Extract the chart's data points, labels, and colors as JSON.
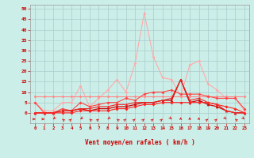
{
  "title": "",
  "xlabel": "Vent moyen/en rafales ( km/h )",
  "background_color": "#cceee8",
  "grid_color": "#aacccc",
  "x_labels": [
    "0",
    "1",
    "2",
    "3",
    "4",
    "5",
    "6",
    "7",
    "8",
    "9",
    "10",
    "11",
    "12",
    "13",
    "14",
    "15",
    "16",
    "17",
    "18",
    "19",
    "20",
    "21",
    "22",
    "23"
  ],
  "ylim": [
    -5,
    52
  ],
  "yticks": [
    0,
    5,
    10,
    15,
    20,
    25,
    30,
    35,
    40,
    45,
    50
  ],
  "series": [
    {
      "color": "#ffaaaa",
      "alpha": 1.0,
      "linewidth": 0.8,
      "marker": "D",
      "markersize": 2.0,
      "values": [
        5,
        1,
        1,
        5,
        5,
        13,
        3,
        7,
        11,
        16,
        10,
        24,
        48,
        27,
        17,
        16,
        8,
        23,
        25,
        14,
        11,
        7,
        7,
        1
      ]
    },
    {
      "color": "#ff8888",
      "alpha": 1.0,
      "linewidth": 0.8,
      "marker": "D",
      "markersize": 2.0,
      "values": [
        8,
        8,
        8,
        8,
        8,
        8,
        8,
        8,
        8,
        8,
        8,
        8,
        8,
        8,
        8,
        8,
        8,
        8,
        8,
        8,
        8,
        8,
        8,
        8
      ]
    },
    {
      "color": "#ff4444",
      "alpha": 1.0,
      "linewidth": 0.8,
      "marker": "D",
      "markersize": 2.0,
      "values": [
        5,
        0,
        0,
        2,
        1,
        5,
        3,
        4,
        5,
        5,
        7,
        6,
        9,
        10,
        10,
        11,
        9,
        9,
        9,
        8,
        7,
        7,
        7,
        2
      ]
    },
    {
      "color": "#cc0000",
      "alpha": 1.0,
      "linewidth": 0.9,
      "marker": "^",
      "markersize": 2.5,
      "values": [
        0,
        0,
        0,
        1,
        1,
        2,
        1,
        2,
        2,
        3,
        3,
        4,
        5,
        5,
        6,
        6,
        16,
        5,
        6,
        4,
        3,
        1,
        0,
        0
      ]
    },
    {
      "color": "#ee2222",
      "alpha": 1.0,
      "linewidth": 0.8,
      "marker": "^",
      "markersize": 2.5,
      "values": [
        0,
        0,
        0,
        1,
        1,
        2,
        2,
        3,
        3,
        4,
        4,
        5,
        5,
        5,
        6,
        7,
        16,
        6,
        7,
        5,
        4,
        1,
        0,
        0
      ]
    },
    {
      "color": "#ff2222",
      "alpha": 1.0,
      "linewidth": 0.8,
      "marker": "D",
      "markersize": 2.0,
      "values": [
        0,
        0,
        0,
        0,
        0,
        1,
        1,
        1,
        1,
        2,
        2,
        3,
        4,
        4,
        5,
        5,
        5,
        5,
        5,
        5,
        4,
        3,
        2,
        0
      ]
    }
  ],
  "arrow_directions": [
    90,
    90,
    225,
    315,
    45,
    225,
    315,
    45,
    225,
    315,
    45,
    45,
    45,
    45,
    45,
    135,
    0,
    0,
    0,
    45,
    45,
    135,
    315,
    135
  ]
}
